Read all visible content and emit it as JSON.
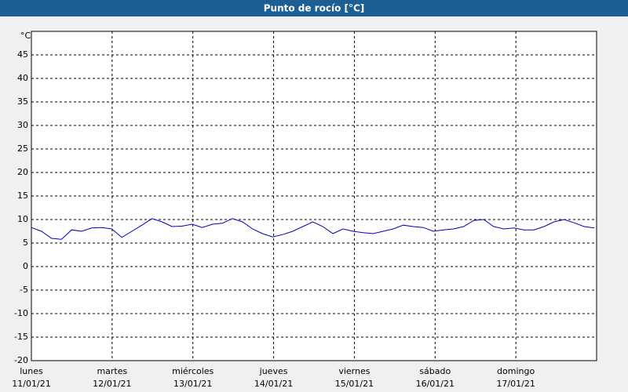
{
  "chart_data": {
    "type": "line",
    "title": "Punto de rocío [°C]",
    "y_unit": "°C",
    "ylim": [
      -20,
      50
    ],
    "yticks": [
      -20,
      -15,
      -10,
      -5,
      0,
      5,
      10,
      15,
      20,
      25,
      30,
      35,
      40,
      45
    ],
    "xticks": [
      {
        "day": "lunes",
        "date": "11/01/21"
      },
      {
        "day": "martes",
        "date": "12/01/21"
      },
      {
        "day": "miércoles",
        "date": "13/01/21"
      },
      {
        "day": "jueves",
        "date": "14/01/21"
      },
      {
        "day": "viernes",
        "date": "15/01/21"
      },
      {
        "day": "sábado",
        "date": "16/01/21"
      },
      {
        "day": "domingo",
        "date": "17/01/21"
      }
    ],
    "grid": true,
    "color": "#0000c0",
    "values": [
      8.3,
      7.5,
      6,
      5.8,
      7.8,
      7.5,
      8.2,
      8.3,
      8,
      6.2,
      7.5,
      8.8,
      10.2,
      9.5,
      8.5,
      8.6,
      9,
      8.3,
      9,
      9.2,
      10.2,
      9.5,
      8,
      7,
      6.3,
      6.8,
      7.5,
      8.5,
      9.5,
      8.5,
      7,
      8,
      7.5,
      7.2,
      7,
      7.5,
      8,
      8.8,
      8.5,
      8.3,
      7.5,
      7.8,
      8,
      8.5,
      9.8,
      10,
      8.5,
      8,
      8.2,
      7.8,
      7.8,
      8.5,
      9.5,
      10,
      9.3,
      8.5,
      8.2
    ]
  }
}
